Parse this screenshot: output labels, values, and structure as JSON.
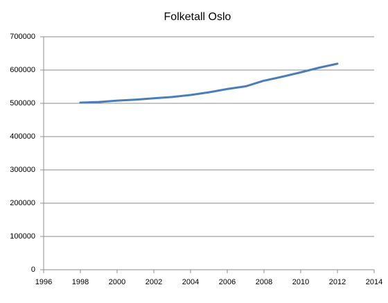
{
  "chart_data": {
    "type": "line",
    "title": "Folketall Oslo",
    "x": [
      1998,
      1999,
      2000,
      2001,
      2002,
      2003,
      2004,
      2005,
      2006,
      2007,
      2008,
      2009,
      2010,
      2011,
      2012
    ],
    "series": [
      {
        "color": "#4a7ebb",
        "values": [
          502000,
          504000,
          508000,
          511000,
          515000,
          519000,
          525000,
          533000,
          543000,
          551000,
          568000,
          580000,
          593000,
          607000,
          619000
        ]
      }
    ],
    "xlim": [
      1996,
      2014
    ],
    "xticks": [
      1996,
      1998,
      2000,
      2002,
      2004,
      2006,
      2008,
      2010,
      2012,
      2014
    ],
    "ylim": [
      0,
      700000
    ],
    "yticks": [
      0,
      100000,
      200000,
      300000,
      400000,
      500000,
      600000,
      700000
    ],
    "grid": true
  }
}
